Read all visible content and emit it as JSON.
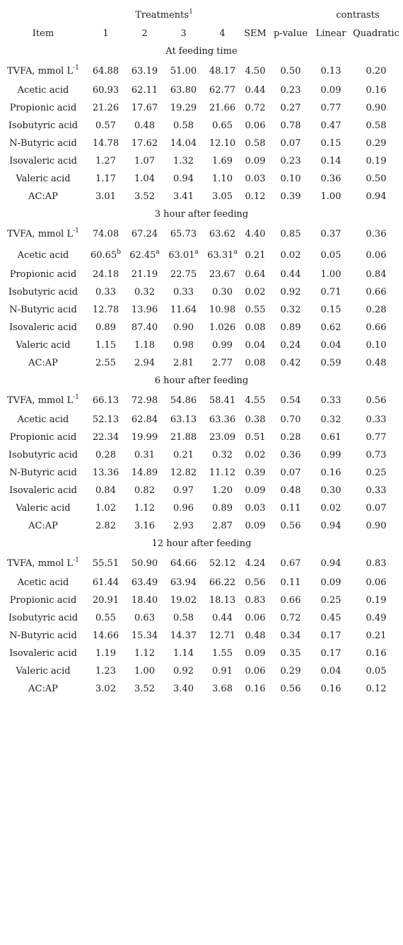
{
  "header": {
    "treatments_label": "Treatments",
    "treatments_sup": "1",
    "contrasts_label": "contrasts",
    "columns": [
      "Item",
      "1",
      "2",
      "3",
      "4",
      "SEM",
      "p-value",
      "Linear",
      "Quadratic"
    ]
  },
  "sections": [
    {
      "title": "At feeding time",
      "rows": [
        {
          "item": "TVFA, mmol L",
          "item_sup": "-1",
          "values": [
            "64.88",
            "63.19",
            "51.00",
            "48.17",
            "4.50",
            "0.50",
            "0.13",
            "0.20"
          ]
        },
        {
          "item": "Acetic acid",
          "values": [
            "60.93",
            "62.11",
            "63.80",
            "62.77",
            "0.44",
            "0.23",
            "0.09",
            "0.16"
          ]
        },
        {
          "item": "Propionic acid",
          "values": [
            "21.26",
            "17.67",
            "19.29",
            "21.66",
            "0.72",
            "0.27",
            "0.77",
            "0.90"
          ]
        },
        {
          "item": "Isobutyric acid",
          "values": [
            "0.57",
            "0.48",
            "0.58",
            "0.65",
            "0.06",
            "0.78",
            "0.47",
            "0.58"
          ]
        },
        {
          "item": "N-Butyric acid",
          "values": [
            "14.78",
            "17.62",
            "14.04",
            "12.10",
            "0.58",
            "0.07",
            "0.15",
            "0.29"
          ]
        },
        {
          "item": "Isovaleric acid",
          "values": [
            "1.27",
            "1.07",
            "1.32",
            "1.69",
            "0.09",
            "0.23",
            "0.14",
            "0.19"
          ]
        },
        {
          "item": "Valeric acid",
          "values": [
            "1.17",
            "1.04",
            "0.94",
            "1.10",
            "0.03",
            "0.10",
            "0.36",
            "0.50"
          ]
        },
        {
          "item": "AC:AP",
          "values": [
            "3.01",
            "3.52",
            "3.41",
            "3.05",
            "0.12",
            "0.39",
            "1.00",
            "0.94"
          ]
        }
      ]
    },
    {
      "title": "3 hour after feeding",
      "rows": [
        {
          "item": "TVFA, mmol L",
          "item_sup": "-1",
          "values": [
            "74.08",
            "67.24",
            "65.73",
            "63.62",
            "4.40",
            "0.85",
            "0.37",
            "0.36"
          ]
        },
        {
          "item": "Acetic acid",
          "values": [
            "60.65",
            "62.45",
            "63.01",
            "63.31",
            "0.21",
            "0.02",
            "0.05",
            "0.06"
          ],
          "sups": [
            "b",
            "a",
            "a",
            "a",
            "",
            "",
            "",
            ""
          ]
        },
        {
          "item": "Propionic acid",
          "values": [
            "24.18",
            "21.19",
            "22.75",
            "23.67",
            "0.64",
            "0.44",
            "1.00",
            "0.84"
          ]
        },
        {
          "item": "Isobutyric acid",
          "values": [
            "0.33",
            "0.32",
            "0.33",
            "0.30",
            "0.02",
            "0.92",
            "0.71",
            "0.66"
          ]
        },
        {
          "item": "N-Butyric acid",
          "values": [
            "12.78",
            "13.96",
            "11.64",
            "10.98",
            "0.55",
            "0.32",
            "0.15",
            "0.28"
          ]
        },
        {
          "item": "Isovaleric acid",
          "values": [
            "0.89",
            "87.40",
            "0.90",
            "1.026",
            "0.08",
            "0.89",
            "0.62",
            "0.66"
          ]
        },
        {
          "item": "Valeric acid",
          "values": [
            "1.15",
            "1.18",
            "0.98",
            "0.99",
            "0.04",
            "0.24",
            "0.04",
            "0.10"
          ]
        },
        {
          "item": "AC:AP",
          "values": [
            "2.55",
            "2.94",
            "2.81",
            "2.77",
            "0.08",
            "0.42",
            "0.59",
            "0.48"
          ]
        }
      ]
    },
    {
      "title": "6 hour after feeding",
      "rows": [
        {
          "item": "TVFA, mmol L",
          "item_sup": "-1",
          "values": [
            "66.13",
            "72.98",
            "54.86",
            "58.41",
            "4.55",
            "0.54",
            "0.33",
            "0.56"
          ]
        },
        {
          "item": "Acetic acid",
          "values": [
            "52.13",
            "62.84",
            "63.13",
            "63.36",
            "0.38",
            "0.70",
            "0.32",
            "0.33"
          ]
        },
        {
          "item": "Propionic acid",
          "values": [
            "22.34",
            "19.99",
            "21.88",
            "23.09",
            "0.51",
            "0.28",
            "0.61",
            "0.77"
          ]
        },
        {
          "item": "Isobutyric acid",
          "values": [
            "0.28",
            "0.31",
            "0.21",
            "0.32",
            "0.02",
            "0.36",
            "0.99",
            "0.73"
          ]
        },
        {
          "item": "N-Butyric acid",
          "values": [
            "13.36",
            "14.89",
            "12.82",
            "11.12",
            "0.39",
            "0.07",
            "0.16",
            "0.25"
          ]
        },
        {
          "item": "Isovaleric acid",
          "values": [
            "0.84",
            "0.82",
            "0.97",
            "1.20",
            "0.09",
            "0.48",
            "0.30",
            "0.33"
          ]
        },
        {
          "item": "Valeric acid",
          "values": [
            "1.02",
            "1.12",
            "0.96",
            "0.89",
            "0.03",
            "0.11",
            "0.02",
            "0.07"
          ]
        },
        {
          "item": "AC:AP",
          "values": [
            "2.82",
            "3.16",
            "2.93",
            "2.87",
            "0.09",
            "0.56",
            "0.94",
            "0.90"
          ]
        }
      ]
    },
    {
      "title": "12 hour after feeding",
      "rows": [
        {
          "item": "TVFA, mmol L",
          "item_sup": "-1",
          "values": [
            "55.51",
            "50.90",
            "64.66",
            "52.12",
            "4.24",
            "0.67",
            "0.94",
            "0.83"
          ]
        },
        {
          "item": "Acetic acid",
          "values": [
            "61.44",
            "63.49",
            "63.94",
            "66.22",
            "0.56",
            "0.11",
            "0.09",
            "0.06"
          ]
        },
        {
          "item": "Propionic acid",
          "values": [
            "20.91",
            "18.40",
            "19.02",
            "18.13",
            "0.83",
            "0.66",
            "0.25",
            "0.19"
          ]
        },
        {
          "item": "Isobutyric acid",
          "values": [
            "0.55",
            "0.63",
            "0.58",
            "0.44",
            "0.06",
            "0.72",
            "0.45",
            "0.49"
          ]
        },
        {
          "item": "N-Butyric acid",
          "values": [
            "14.66",
            "15.34",
            "14.37",
            "12.71",
            "0.48",
            "0.34",
            "0.17",
            "0.21"
          ]
        },
        {
          "item": "Isovaleric acid",
          "values": [
            "1.19",
            "1.12",
            "1.14",
            "1.55",
            "0.09",
            "0.35",
            "0.17",
            "0.16"
          ]
        },
        {
          "item": "Valeric acid",
          "values": [
            "1.23",
            "1.00",
            "0.92",
            "0.91",
            "0.06",
            "0.29",
            "0.04",
            "0.05"
          ]
        },
        {
          "item": "AC:AP",
          "values": [
            "3.02",
            "3.52",
            "3.40",
            "3.68",
            "0.16",
            "0.56",
            "0.16",
            "0.12"
          ]
        }
      ]
    }
  ]
}
